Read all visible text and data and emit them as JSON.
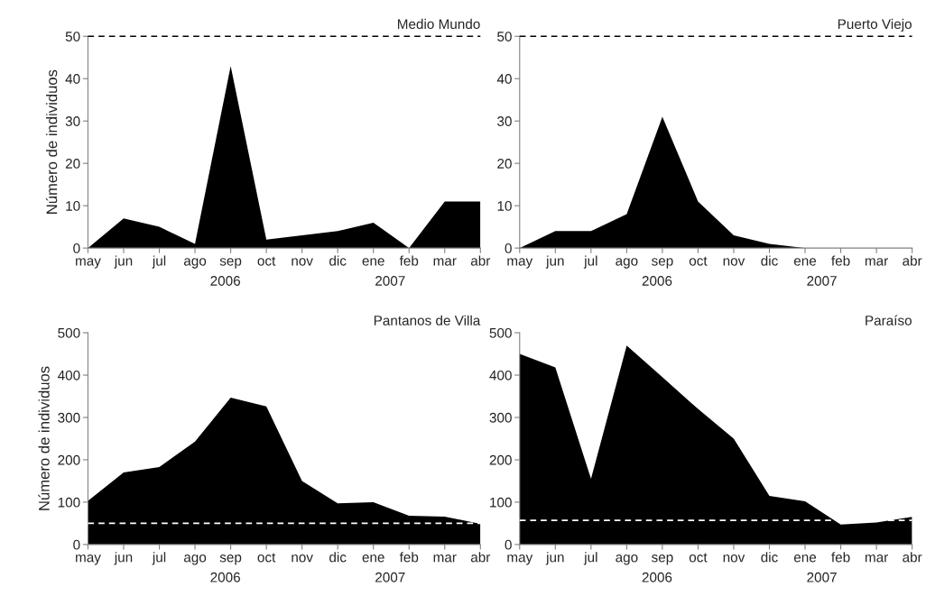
{
  "chart_data": [
    {
      "type": "area",
      "title": "Medio Mundo",
      "ylabel": "Número de individuos",
      "categories": [
        "may",
        "jun",
        "jul",
        "ago",
        "sep",
        "oct",
        "nov",
        "dic",
        "ene",
        "feb",
        "mar",
        "abr"
      ],
      "values": [
        0,
        7,
        5,
        1,
        43,
        2,
        3,
        4,
        6,
        0,
        11,
        11
      ],
      "color": "#000000",
      "ylim": [
        0,
        50
      ],
      "yticks": [
        0,
        10,
        20,
        30,
        40,
        50
      ],
      "ref_lines": [
        {
          "axis": "y",
          "value": 50,
          "color": "#000000",
          "line_style": "dashed"
        }
      ],
      "annotations": [
        "2006",
        "2007"
      ],
      "grid": false,
      "legend": false
    },
    {
      "type": "area",
      "title": "Puerto Viejo",
      "categories": [
        "may",
        "jun",
        "jul",
        "ago",
        "sep",
        "oct",
        "nov",
        "dic",
        "ene",
        "feb",
        "mar",
        "abr"
      ],
      "values": [
        0,
        4,
        4,
        8,
        31,
        11,
        3,
        1,
        0,
        0,
        0,
        0
      ],
      "color": "#000000",
      "ylim": [
        0,
        50
      ],
      "yticks": [
        0,
        10,
        20,
        30,
        40,
        50
      ],
      "ref_lines": [
        {
          "axis": "y",
          "value": 50,
          "color": "#000000",
          "line_style": "dashed"
        }
      ],
      "annotations": [
        "2006",
        "2007"
      ],
      "grid": false,
      "legend": false
    },
    {
      "type": "area",
      "title": "Pantanos de Villa",
      "ylabel": "Número de individuos",
      "categories": [
        "may",
        "jun",
        "jul",
        "ago",
        "sep",
        "oct",
        "nov",
        "dic",
        "ene",
        "feb",
        "mar",
        "abr"
      ],
      "values": [
        103,
        170,
        183,
        243,
        347,
        326,
        150,
        97,
        100,
        68,
        66,
        49
      ],
      "color": "#000000",
      "ylim": [
        0,
        500
      ],
      "yticks": [
        0,
        100,
        200,
        300,
        400,
        500
      ],
      "ref_lines": [
        {
          "axis": "y",
          "value": 50,
          "color": "#ffffff",
          "line_style": "dashed"
        }
      ],
      "annotations": [
        "2006",
        "2007"
      ],
      "grid": false,
      "legend": false
    },
    {
      "type": "area",
      "title": "Paraíso",
      "categories": [
        "may",
        "jun",
        "jul",
        "ago",
        "sep",
        "oct",
        "nov",
        "dic",
        "ene",
        "feb",
        "mar",
        "abr"
      ],
      "values": [
        450,
        418,
        155,
        470,
        395,
        320,
        250,
        115,
        102,
        47,
        52,
        65
      ],
      "color": "#000000",
      "ylim": [
        0,
        500
      ],
      "yticks": [
        0,
        100,
        200,
        300,
        400,
        500
      ],
      "ref_lines": [
        {
          "axis": "y",
          "value": 57,
          "color": "#ffffff",
          "line_style": "dashed"
        }
      ],
      "annotations": [
        "2006",
        "2007"
      ],
      "grid": false,
      "legend": false
    }
  ]
}
